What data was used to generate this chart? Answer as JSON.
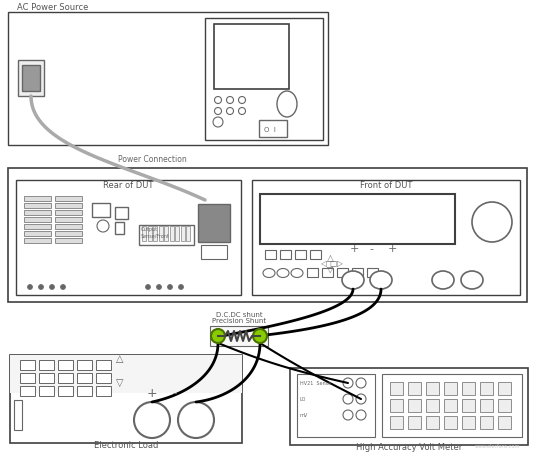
{
  "bg_color": "#ffffff",
  "border_color": "#404040",
  "gray_color": "#aaaaaa",
  "dark_gray": "#666666",
  "med_gray": "#888888",
  "green_color": "#88cc00",
  "labels": {
    "ac_power_source": "AC Power Source",
    "power_connection": "Power Connection",
    "rear_dut": "Rear of DUT",
    "front_dut": "Front of DUT",
    "electronic_load": "Electronic Load",
    "volt_meter": "High Accuracy Volt Meter",
    "dc_shunt_1": "D.C.DC shunt",
    "dc_shunt_2": "Precision Shunt"
  }
}
